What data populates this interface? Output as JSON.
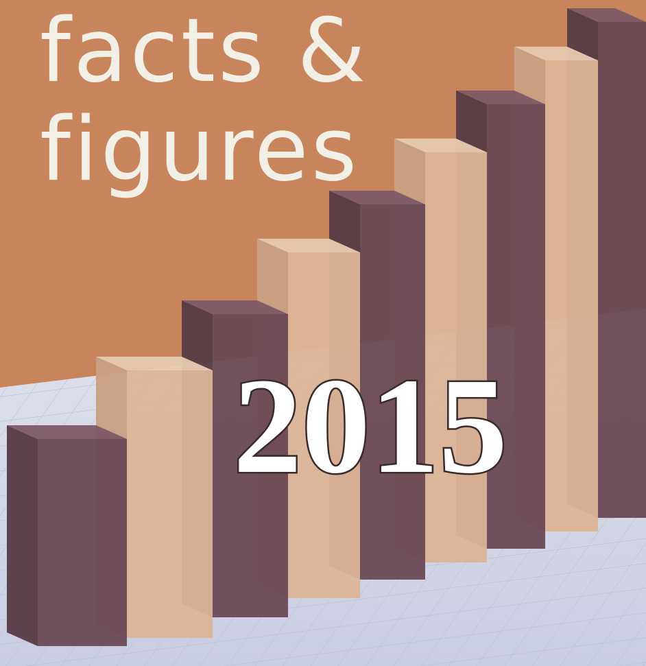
{
  "header": {
    "lines": [
      "facts &",
      "figures"
    ]
  },
  "year": "2015"
}
